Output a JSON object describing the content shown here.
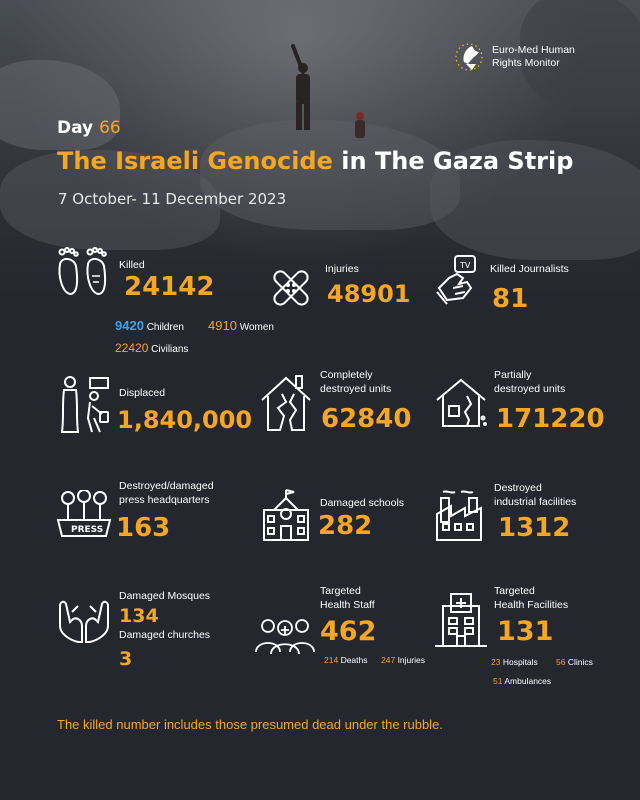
{
  "logo": {
    "line1": "Euro-Med Human",
    "line2": "Rights Monitor"
  },
  "header": {
    "day_label": "Day",
    "day_number": "66",
    "title_accent": "The Israeli Genocide",
    "title_rest": " in The Gaza Strip",
    "dates": "7 October- 11 December 2023"
  },
  "stats": {
    "killed": {
      "label": "Killed",
      "value": "24142",
      "children_value": "9420",
      "children_label": "Children",
      "women_value": "4910",
      "women_label": "Women",
      "civilians_value": "22420",
      "civilians_label": "Civilians"
    },
    "injuries": {
      "label": "Injuries",
      "value": "48901"
    },
    "journalists": {
      "label": "Killed Journalists",
      "value": "81"
    },
    "displaced": {
      "label": "Displaced",
      "value": "1,840,000"
    },
    "destroyed_units": {
      "label1": "Completely",
      "label2": "destroyed  units",
      "value": "62840"
    },
    "partial_units": {
      "label1": "Partially",
      "label2": "destroyed units",
      "value": "171220"
    },
    "press_hq": {
      "label1": "Destroyed/damaged",
      "label2": "press headquarters",
      "value": "163"
    },
    "schools": {
      "label": "Damaged schools",
      "value": "282"
    },
    "industrial": {
      "label1": "Destroyed",
      "label2": "industrial facilities",
      "value": "1312"
    },
    "mosques": {
      "label": "Damaged Mosques",
      "value": "134"
    },
    "churches": {
      "label": "Damaged churches",
      "value": "3"
    },
    "health_staff": {
      "label1": "Targeted",
      "label2": "Health Staff",
      "value": "462",
      "deaths_value": "214",
      "deaths_label": "Deaths",
      "injuries_value": "247",
      "injuries_label": "Injuries"
    },
    "health_facilities": {
      "label1": "Targeted",
      "label2": "Health Facilities",
      "value": "131",
      "hospitals_value": "23",
      "hospitals_label": "Hospitals",
      "clinics_value": "56",
      "clinics_label": "Clinics",
      "ambulances_value": "51",
      "ambulances_label": "Ambulances"
    }
  },
  "footer": "The killed number includes those presumed dead under the rubble.",
  "colors": {
    "accent": "#f5a623",
    "blue": "#3aa3e8",
    "background": "#24272e"
  }
}
